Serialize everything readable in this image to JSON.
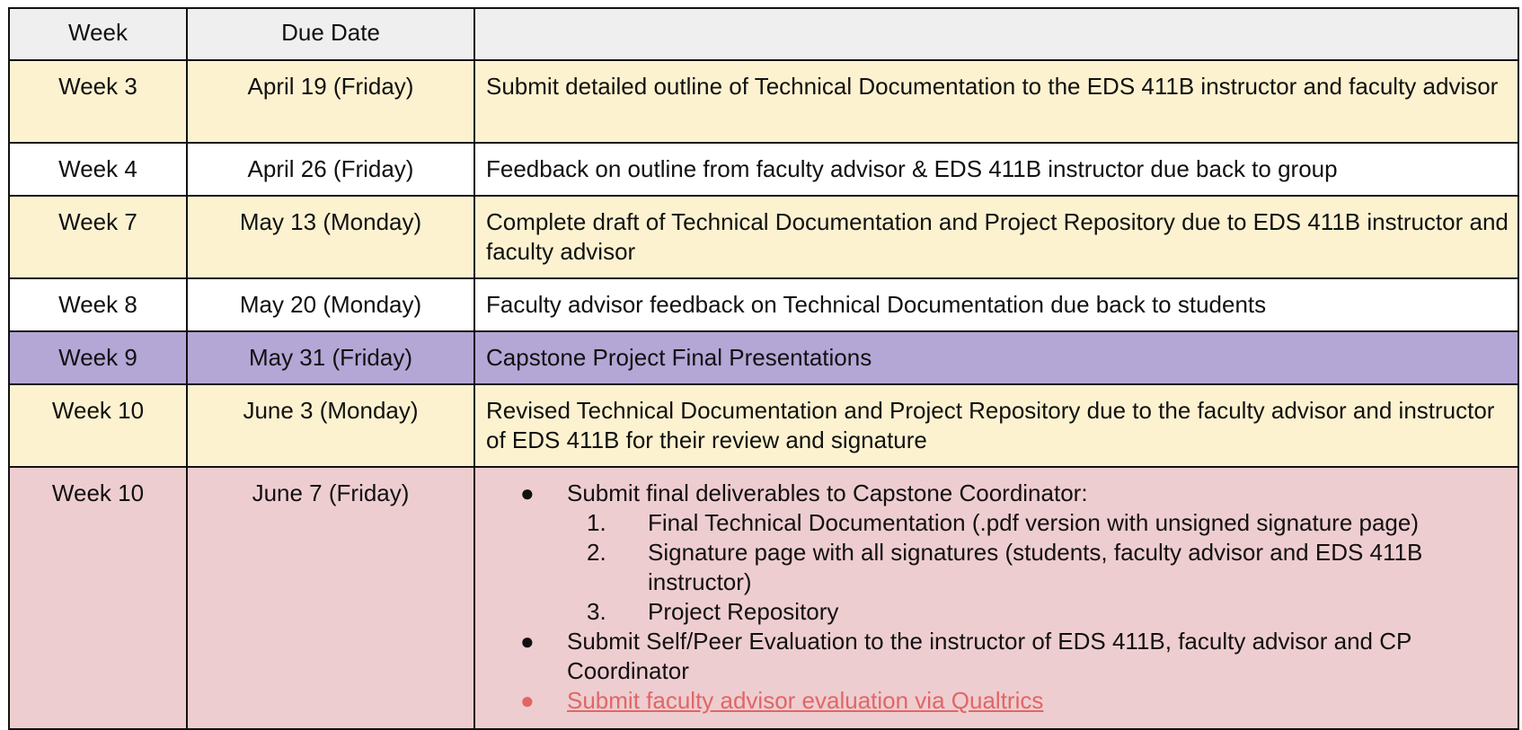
{
  "header": {
    "week": "Week",
    "due_date": "Due Date",
    "task": ""
  },
  "rows": [
    {
      "week": "Week 3",
      "due": "April 19  (Friday)",
      "task": "Submit detailed outline of Technical Documentation to the EDS 411B instructor and faculty advisor"
    },
    {
      "week": "Week 4",
      "due": "April 26  (Friday)",
      "task": "Feedback on outline from faculty advisor & EDS 411B instructor due back to group"
    },
    {
      "week": "Week 7",
      "due": "May 13 (Monday)",
      "task": "Complete draft of Technical Documentation and Project Repository due to EDS 411B instructor and faculty advisor"
    },
    {
      "week": "Week 8",
      "due": "May 20  (Monday)",
      "task": "Faculty advisor feedback on Technical Documentation due back to students"
    },
    {
      "week": "Week 9",
      "due": "May 31  (Friday)",
      "task": "Capstone Project Final Presentations"
    },
    {
      "week": "Week 10",
      "due": "June 3 (Monday)",
      "task": "Revised Technical Documentation and Project Repository due to the faculty advisor and instructor of EDS 411B for their review and signature"
    },
    {
      "week": "Week 10",
      "due": "June 7 (Friday)"
    }
  ],
  "final": {
    "bullet1": "Submit final deliverables to Capstone Coordinator:",
    "items": [
      {
        "n": "1.",
        "text": "Final Technical Documentation (.pdf version with unsigned signature page)"
      },
      {
        "n": "2.",
        "text": "Signature page with all signatures (students, faculty advisor and EDS 411B instructor)"
      },
      {
        "n": "3.",
        "text": "Project Repository"
      }
    ],
    "bullet2": "Submit Self/Peer Evaluation to the instructor of EDS 411B, faculty advisor and CP Coordinator",
    "link": "Submit faculty advisor evaluation via Qualtrics"
  },
  "colors": {
    "header": "#efefef",
    "yellow": "#fdf2d0",
    "white": "#ffffff",
    "purple": "#b4a7d6",
    "pink": "#eecdd0",
    "link": "#e06666"
  }
}
